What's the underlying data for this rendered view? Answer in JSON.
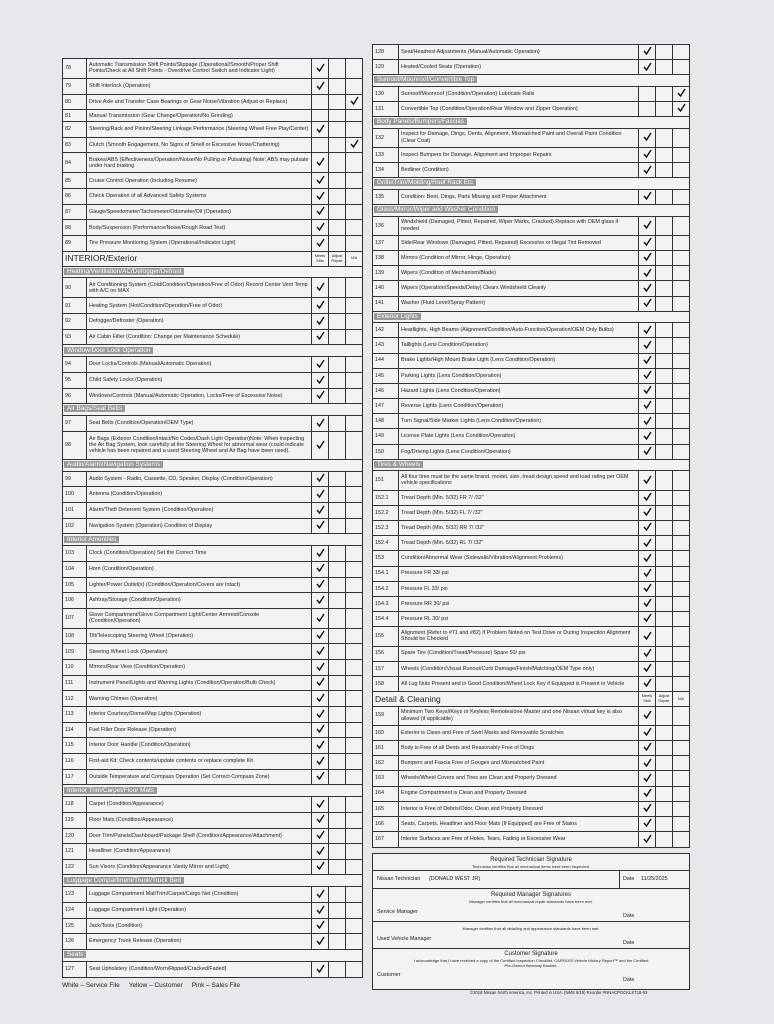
{
  "left": {
    "rows": [
      {
        "num": "78",
        "text": "Automatic Transmission Shift Points/Slippage (Operational/Smooth/Proper Shift Points/Check at All Shift Points - Overdrive Control Switch and Indicator Light)",
        "check": "meets"
      },
      {
        "num": "79",
        "text": "Shift Interlock (Operation)",
        "check": "meets"
      },
      {
        "num": "80",
        "text": "Drive Axle and Transfer Case Bearings or Gear Noise/Vibration (Adjust or Replace)",
        "check": "na"
      },
      {
        "num": "81",
        "text": "Manual Transmission (Gear Change/Operation/No Grinding)"
      },
      {
        "num": "82",
        "text": "Steering/Rack and Pinion/Steering Linkage Performance (Steering Wheel Free Play/Center)",
        "check": "meets"
      },
      {
        "num": "83",
        "text": "Clutch (Smooth Engagement, No Signs of Smell or Excessive Noise/Chattering)",
        "check": "na"
      },
      {
        "num": "84",
        "text": "Brakes/ABS (Effectiveness/Operation/Noise/No Pulling or Pulsating) Note: ABS may pulsate under hard braking",
        "check": "meets"
      },
      {
        "num": "85",
        "text": "Cruise Control Operation (Including Resume)",
        "check": "meets"
      },
      {
        "num": "86",
        "text": "Check Operation of all Advanced Safety Systems",
        "check": "meets"
      },
      {
        "num": "87",
        "text": "Gauge/Speedometer/Tachometer/Odometer/Oil (Operation)",
        "check": "meets"
      },
      {
        "num": "88",
        "text": "Body/Suspension (Performance/Noise/Rough Road Test)",
        "check": "meets"
      },
      {
        "num": "89",
        "text": "Tire Pressure Monitoring System (Operational/Indicator Light)",
        "check": "meets"
      },
      {
        "header": "INTERIOR/Exterior",
        "cols": [
          "Meets Stds",
          "Adjust Repair",
          "N/A"
        ]
      },
      {
        "section": "Heating/Ventilation/AC/Defogger/Defrost"
      },
      {
        "num": "90",
        "text": "Air Conditioning System (Cold/Condition/Operation/Free of Odor) Record Center Vent Temp with A/C on MAX",
        "check": "meets"
      },
      {
        "num": "91",
        "text": "Heating System (Hot/Condition/Operation/Free of Odor)",
        "check": "meets"
      },
      {
        "num": "92",
        "text": "Defogger/Defroster (Operation)",
        "check": "meets"
      },
      {
        "num": "93",
        "text": "Air Cabin Filter (Condition: Change per Maintenance Schedule)",
        "check": "meets"
      },
      {
        "section": "Window/Door Lock Operation"
      },
      {
        "num": "94",
        "text": "Door Locks/Controls (Manual/Automatic Operation)",
        "check": "meets"
      },
      {
        "num": "95",
        "text": "Child Safety Locks (Operation)",
        "check": "meets"
      },
      {
        "num": "96",
        "text": "Windows/Controls (Manual/Automatic Operation, Locks/Free of Excessive Noise)",
        "check": "meets"
      },
      {
        "section": "Air Bags/Seat Belts"
      },
      {
        "num": "97",
        "text": "Seat Belts (Condition/Operation/OEM Type)",
        "check": "meets"
      },
      {
        "num": "98",
        "text": "Air Bags (Exterior Condition/Intact/No Codes/Dash Light Operation)Note: When inspecting the Air Bag System, look carefully at the Steering Wheel for abnormal wear (could indicate vehicle has been repaired and a used Steering Wheel and Air Bag have been used).",
        "check": "meets"
      },
      {
        "section": "Audio/Alarm/Navigation Systems"
      },
      {
        "num": "99",
        "text": "Audio System - Radio, Cassette, CD, Speaker, Display (Condition/Operation)",
        "check": "meets"
      },
      {
        "num": "100",
        "text": "Antenna (Condition/Operation)",
        "check": "meets"
      },
      {
        "num": "101",
        "text": "Alarm/Theft Deterrent System (Condition/Operation)",
        "check": "meets"
      },
      {
        "num": "102",
        "text": "Navigation System (Operation) Condition of Display",
        "check": "meets"
      },
      {
        "section": "Interior Amenities"
      },
      {
        "num": "103",
        "text": "Clock (Condition/Operation) Set the Correct Time",
        "check": "meets"
      },
      {
        "num": "104",
        "text": "Horn (Condition/Operation)",
        "check": "meets"
      },
      {
        "num": "105",
        "text": "Lighter/Power Outlet(s) (Condition/Operation/Covers are Intact)",
        "check": "meets"
      },
      {
        "num": "106",
        "text": "Ashtray/Storage (Condition/Operation)",
        "check": "meets"
      },
      {
        "num": "107",
        "text": "Glove Compartment/Glove Compartment Light/Center Armrest/Console (Condition/Operation)",
        "check": "meets"
      },
      {
        "num": "108",
        "text": "Tilt/Telescoping Steering Wheel (Operation)",
        "check": "meets"
      },
      {
        "num": "109",
        "text": "Steering Wheel Lock (Operation)",
        "check": "meets"
      },
      {
        "num": "110",
        "text": "Mirrors/Rear View (Condition/Operation)",
        "check": "meets"
      },
      {
        "num": "111",
        "text": "Instrument Panel/Lights and Warning Lights (Condition/Operation/Bulb Check)",
        "check": "meets"
      },
      {
        "num": "112",
        "text": "Warning Chimes (Operation)",
        "check": "meets"
      },
      {
        "num": "113",
        "text": "Interior Courtesy/Dome/Map Lights (Operation)",
        "check": "meets"
      },
      {
        "num": "114",
        "text": "Fuel Filler Door Release (Operation)",
        "check": "meets"
      },
      {
        "num": "115",
        "text": "Interior Door Handle (Condition/Operation)",
        "check": "meets"
      },
      {
        "num": "116",
        "text": "First-aid Kit: Check contents/update contents or replace complete Kit",
        "check": "meets"
      },
      {
        "num": "117",
        "text": "Outside Temperature and Compass Operation (Set Correct Compass Zone)",
        "check": "meets"
      },
      {
        "section": "Interior Trim/Carpet/Floor Mats"
      },
      {
        "num": "118",
        "text": "Carpet (Condition/Appearance)",
        "check": "meets"
      },
      {
        "num": "119",
        "text": "Floor Mats (Condition/Appearance)",
        "check": "meets"
      },
      {
        "num": "120",
        "text": "Door Trim/Panels/Dashboard/Package Shelf (Condition/Appearance/Attachment)",
        "check": "meets"
      },
      {
        "num": "121",
        "text": "Headliner (Condition/Appearance)",
        "check": "meets"
      },
      {
        "num": "122",
        "text": "Sun Visors (Condition/Appearance Vanity Mirror and Light)",
        "check": "meets"
      },
      {
        "section": "Luggage Compartment/Trunk/Truck Bed"
      },
      {
        "num": "123",
        "text": "Luggage Compartment Mat/Trim/Carpet/Cargo Net (Condition)",
        "check": "meets"
      },
      {
        "num": "124",
        "text": "Luggage Compartment Light (Operation)",
        "check": "meets"
      },
      {
        "num": "125",
        "text": "Jack/Tools (Condition)",
        "check": "meets"
      },
      {
        "num": "126",
        "text": "Emergency Trunk Release (Operation)",
        "check": "meets"
      },
      {
        "section": "Seats"
      },
      {
        "num": "127",
        "text": "Seat Upholstery (Condition/Worn/Ripped/Cracked/Faded)",
        "check": "meets"
      }
    ]
  },
  "right": {
    "rows": [
      {
        "num": "128",
        "text": "Seat/Headrest Adjustments (Manual/Automatic Operation)",
        "check": "meets"
      },
      {
        "num": "129",
        "text": "Heated/Cooled Seats (Operation)",
        "check": "meets"
      },
      {
        "section": "Sunroof/Moonroof/Convertible Top"
      },
      {
        "num": "130",
        "text": "Sunroof/Moonroof (Condition/Operation) Lubricate Rails",
        "check": "na"
      },
      {
        "num": "131",
        "text": "Convertible Top (Condition/Operation/Rear Window and Zipper Operation)",
        "check": "na"
      },
      {
        "section": "Body Panels/Bumpers/Fascias"
      },
      {
        "num": "132",
        "text": "Inspect for Damage, Dings, Dents, Alignment, Mismatched Paint and Overall Paint Condition (Clear Coat)",
        "check": "meets"
      },
      {
        "num": "133",
        "text": "Inspect Bumpers for Damage, Alignment and Improper Repairs",
        "check": "meets"
      },
      {
        "num": "134",
        "text": "Bedliner (Condition)",
        "check": "meets"
      },
      {
        "section": "Grille/Trim/Molding/Roof Rack Etc"
      },
      {
        "num": "135",
        "text": "Condition: Bent, Dings, Parts Missing and Proper Attachment",
        "check": "meets"
      },
      {
        "section": "Glass/Mirror/Wiper and Washer Condition"
      },
      {
        "num": "136",
        "text": "Windshield (Damaged, Pitted, Repaired, Wiper Marks, Cracked) Replace with OEM glass if needed",
        "check": "meets"
      },
      {
        "num": "137",
        "text": "Side/Rear Windows (Damaged, Pitted, Repaired) Excessive or Illegal Tint Removed",
        "check": "meets"
      },
      {
        "num": "138",
        "text": "Mirrors (Condition of Mirror, Hinge, Operation)",
        "check": "meets"
      },
      {
        "num": "139",
        "text": "Wipers (Condition of Mechanism/Blade)",
        "check": "meets"
      },
      {
        "num": "140",
        "text": "Wipers (Operation/Speeds/Delay) Clears Windshield Cleanly",
        "check": "meets"
      },
      {
        "num": "141",
        "text": "Washer (Fluid Level/Spray Pattern)",
        "check": "meets"
      },
      {
        "section": "Exterior Lights"
      },
      {
        "num": "142",
        "text": "Headlights, High Beams (Alignment/Condition/Auto-Function/Operation/OEM Only Bulbs)",
        "check": "meets"
      },
      {
        "num": "143",
        "text": "Taillights (Lens Condition/Operation)",
        "check": "meets"
      },
      {
        "num": "144",
        "text": "Brake Lights/High Mount Brake Light (Lens Condition/Operation)",
        "check": "meets"
      },
      {
        "num": "145",
        "text": "Parking Lights (Lens Condition/Operation)",
        "check": "meets"
      },
      {
        "num": "146",
        "text": "Hazard Lights (Lens Condition/Operation)",
        "check": "meets"
      },
      {
        "num": "147",
        "text": "Reverse Lights (Lens Condition/Operation)",
        "check": "meets"
      },
      {
        "num": "148",
        "text": "Turn Signal/Side Marker Lights (Lens Condition/Operation)",
        "check": "meets"
      },
      {
        "num": "149",
        "text": "License Plate Lights (Lens Condition/Operation)",
        "check": "meets"
      },
      {
        "num": "150",
        "text": "Fog/Driving Lights (Lens Condition/Operation)",
        "check": "meets"
      },
      {
        "section": "Tires & Wheels"
      },
      {
        "num": "151",
        "text": "All four tires must be the same brand, model, size, tread design,speed and load rating per OEM vehicle specifications",
        "check": "meets"
      },
      {
        "num": "152.1",
        "text": "Tread Depth (Min. 5/32) FR 7/ /32\"",
        "check": "meets"
      },
      {
        "num": "152.2",
        "text": "Tread Depth (Min. 5/32) FL 7/ /32\"",
        "check": "meets"
      },
      {
        "num": "152.3",
        "text": "Tread Depth (Min. 5/32) RR 7/ /32\"",
        "check": "meets"
      },
      {
        "num": "152.4",
        "text": "Tread Depth (Min. 5/32) RL 7/ /32\"",
        "check": "meets"
      },
      {
        "num": "153",
        "text": "Condition/Abnormal Wear (Sidewalls/Vibration/Alignment Problems)",
        "check": "meets"
      },
      {
        "num": "154.1",
        "text": "Pressure FR 33/ psi",
        "check": "meets"
      },
      {
        "num": "154.2",
        "text": "Pressure FL 33/ psi",
        "check": "meets"
      },
      {
        "num": "154.3",
        "text": "Pressure RR 30/ psi",
        "check": "meets"
      },
      {
        "num": "154.4",
        "text": "Pressure RL 30/ psi",
        "check": "meets"
      },
      {
        "num": "155",
        "text": "Alignment (Refer to #71 and #82) If Problem Noted on Test Drive or During Inspection Alignment Should be Checked",
        "check": "meets"
      },
      {
        "num": "156",
        "text": "Spare Tire (Condition/Tread/Pressure) Spare 50/ psi",
        "check": "meets"
      },
      {
        "num": "157",
        "text": "Wheels (Condition/Visual Runout/Curb Damage/Finish/Matching/OEM Type only)",
        "check": "meets"
      },
      {
        "num": "158",
        "text": "All Lug Nuts Present and in Good Condition/Wheel Lock Key if Equipped is Present in Vehicle",
        "check": "meets"
      },
      {
        "header": "Detail & Cleaning",
        "cols": [
          "Meets Stds",
          "Adjust Repair",
          "N/A"
        ]
      },
      {
        "num": "159",
        "text": "Minimum Two Keys/iKeys or Keyless Remotes/one Master and one Nissan virtual key is also allowed (if applicable)",
        "check": "meets"
      },
      {
        "num": "160",
        "text": "Exterior is Clean and Free of Swirl Marks and Removable Scratches",
        "check": "meets"
      },
      {
        "num": "161",
        "text": "Body is Free of all Dents and Reasonably Free of Dings",
        "check": "meets"
      },
      {
        "num": "162",
        "text": "Bumpers and Fascia Free of Gouges and Mismatched Paint",
        "check": "meets"
      },
      {
        "num": "163",
        "text": "Wheels/Wheel Covers and Tires are Clean and Properly Dressed",
        "check": "meets"
      },
      {
        "num": "164",
        "text": "Engine Compartment is Clean and Properly Dressed",
        "check": "meets"
      },
      {
        "num": "165",
        "text": "Interior is Free of Debris/Odor, Clean and Properly Dressed",
        "check": "meets"
      },
      {
        "num": "166",
        "text": "Seats, Carpets, Headliner and Floor Mats (If Equipped) are Free of Stains",
        "check": "meets"
      },
      {
        "num": "167",
        "text": "Interior Surfaces are Free of Holes, Tears, Fading or Excessive Wear",
        "check": "meets"
      }
    ]
  },
  "signature": {
    "tech_title": "Required Technician Signature",
    "tech_note": "Technician certifies that all mechanical items have been inspected.",
    "tech_label": "Nissan Technician",
    "tech_name": "(DONALD WEST JR)",
    "tech_date_label": "Date",
    "tech_date": "11/25/2025",
    "mgr_title": "Required Manager Signatures",
    "mgr_note": "Manager certifies that all mechanical repair standards have been met.",
    "service_label": "Service Manager",
    "service_date_label": "Date",
    "mgr_note2": "Manager certifies that all detailing and appearance standards have been met.",
    "used_label": "Used Vehicle Manager",
    "used_date_label": "Date",
    "cust_title": "Customer Signature",
    "cust_note": "I acknowledge that I have received a copy of the Certified Inspection Checklist, CARFAX® Vehicle History Report™ and the Certified Pre-Owned Warranty Booklet.",
    "cust_label": "Customer",
    "cust_date_label": "Date"
  },
  "footer": {
    "copyright": "©2018 Nissan North America, Inc. Printed in USA. (NMS 8/18) Reorder #NNACPOCKLST18-03",
    "copies": "White – Service File     Yellow – Customer     Pink – Sales File"
  }
}
